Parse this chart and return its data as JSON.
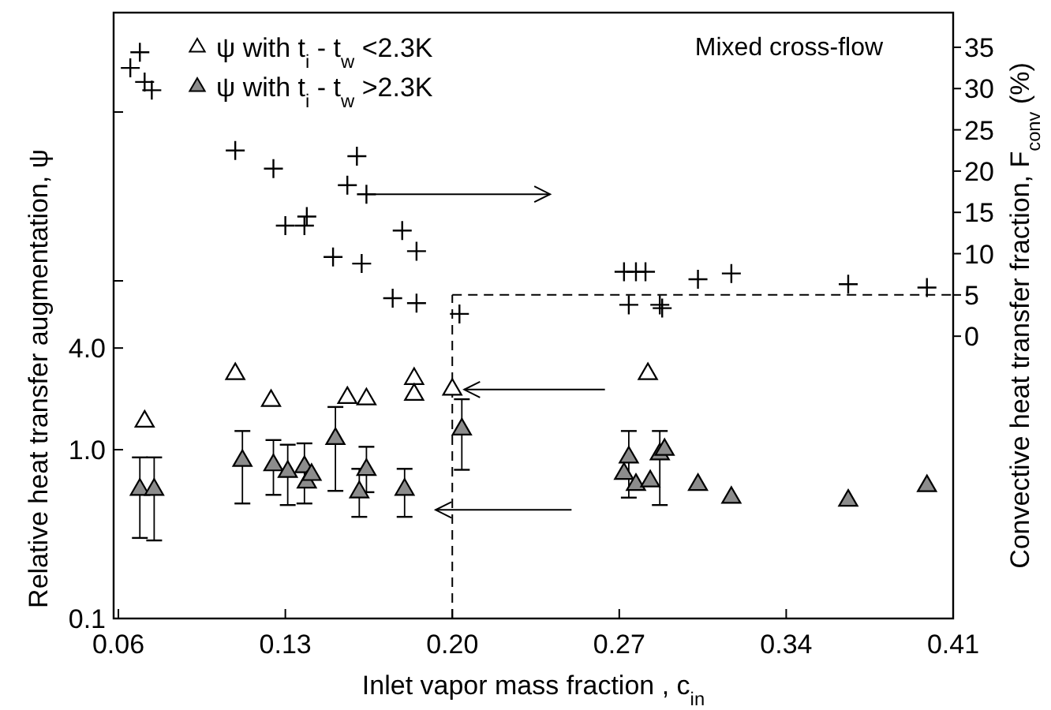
{
  "chart_data": {
    "type": "scatter",
    "xlabel": "Inlet vapor mass fraction , c$_{in}$",
    "ylabel": "Relative heat transfer augmentation, ψ",
    "y2label": "Convective heat transfer fraction, F$_{conv}$ (%)",
    "annotations": [
      "Mixed cross-flow"
    ],
    "xlim": [
      0.058,
      0.41
    ],
    "xticks": [
      0.06,
      0.13,
      {
        "value": 0.2,
        "label": "0.20"
      },
      0.27,
      0.34,
      0.41
    ],
    "ylim": [
      0.1,
      388
    ],
    "yticks": [
      {
        "value": 0.1,
        "label": "0.1"
      },
      {
        "value": 1,
        "label": "1.0"
      },
      {
        "value": 4,
        "label": "4.0"
      },
      {
        "value": 10,
        "label": null
      },
      {
        "value": 100,
        "label": null
      }
    ],
    "y2lim": [
      -34.2,
      39.2
    ],
    "y2ticks": [
      0,
      5,
      10,
      15,
      20,
      25,
      30,
      35
    ],
    "log": "y",
    "grid": false,
    "legend": "top left",
    "ref_lines": [
      {
        "axis": "x",
        "value": 0.2,
        "line_style": "dashed"
      },
      {
        "axis": "y2",
        "value": 5,
        "line_style": "dashed"
      }
    ],
    "series": [
      {
        "name": "ψ with t$_{i}$ - t$_{w}$ <2.3K",
        "color": "#ffffff",
        "marker": "triangle",
        "x": [
          0.071,
          0.109,
          0.124,
          0.156,
          0.164,
          0.184,
          0.184,
          0.2,
          0.282
        ],
        "values": [
          1.47,
          2.81,
          1.95,
          2.03,
          1.99,
          2.63,
          2.12,
          2.27,
          2.81
        ]
      },
      {
        "name": "ψ with t$_{i}$ - t$_{w}$ >2.3K",
        "color": "#8c8c8c",
        "marker": "triangle",
        "x": [
          0.069,
          0.075,
          0.112,
          0.125,
          0.131,
          0.138,
          0.139,
          0.141,
          0.151,
          0.161,
          0.164,
          0.18,
          0.204,
          0.274,
          0.272,
          0.277,
          0.283,
          0.287,
          0.289,
          0.303,
          0.317,
          0.366,
          0.399
        ],
        "values": [
          0.58,
          0.58,
          0.86,
          0.81,
          0.74,
          0.79,
          0.64,
          0.71,
          1.16,
          0.56,
          0.76,
          0.58,
          1.32,
          0.9,
          0.72,
          0.62,
          0.65,
          0.94,
          1.0,
          0.62,
          0.52,
          0.5,
          0.61
        ],
        "errors": [
          [
            0.3,
            0.9
          ],
          [
            0.29,
            0.9
          ],
          [
            0.48,
            1.29
          ],
          [
            0.54,
            1.14
          ],
          [
            0.47,
            1.07
          ],
          [
            0.48,
            1.09
          ],
          null,
          null,
          [
            0.57,
            1.79
          ],
          [
            0.4,
            0.77
          ],
          [
            0.56,
            1.04
          ],
          [
            0.4,
            0.77
          ],
          [
            0.76,
            1.99
          ],
          [
            0.52,
            1.29
          ],
          null,
          null,
          null,
          [
            0.47,
            1.29
          ],
          null,
          null,
          null,
          null,
          null
        ]
      },
      {
        "color": "#000000",
        "marker": "cross",
        "axis": "y2",
        "x": [
          0.065,
          0.069,
          0.071,
          0.074,
          0.109,
          0.125,
          0.16,
          0.156,
          0.164,
          0.13,
          0.138,
          0.139,
          0.15,
          0.162,
          0.179,
          0.185,
          0.175,
          0.185,
          0.203,
          0.272,
          0.277,
          0.281,
          0.303,
          0.317,
          0.274,
          0.287,
          0.288,
          0.366,
          0.399
        ],
        "values": [
          32.5,
          34.4,
          30.8,
          29.8,
          22.5,
          20.3,
          21.8,
          18.3,
          17.2,
          13.4,
          13.4,
          14.5,
          9.6,
          8.8,
          12.8,
          10.3,
          4.6,
          4.0,
          2.7,
          7.8,
          7.8,
          7.8,
          6.9,
          7.6,
          3.8,
          3.8,
          3.4,
          6.3,
          5.9
        ]
      }
    ]
  }
}
